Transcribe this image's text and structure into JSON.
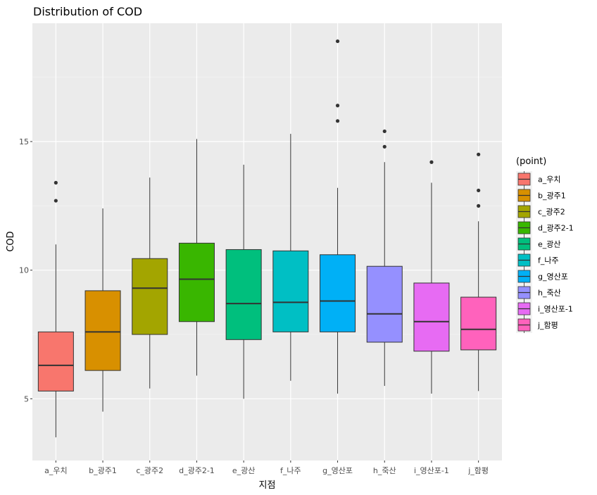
{
  "chart_data": {
    "type": "box",
    "title": "Distribution of COD",
    "xlabel": "지점",
    "ylabel": "COD",
    "ylim": [
      2.6,
      19.6
    ],
    "yticks": [
      5,
      10,
      15
    ],
    "grid": true,
    "legend_position": "right",
    "legend_title": "(point)",
    "categories": [
      "a_우치",
      "b_광주1",
      "c_광주2",
      "d_광주2-1",
      "e_광산",
      "f_나주",
      "g_영산포",
      "h_죽산",
      "i_영산포-1",
      "j_함평"
    ],
    "colors": [
      "#F8766D",
      "#D89000",
      "#A3A500",
      "#39B600",
      "#00BF7D",
      "#00BFC4",
      "#00B0F6",
      "#9590FF",
      "#E76BF3",
      "#FF62BC"
    ],
    "boxes": [
      {
        "min": 3.5,
        "q1": 5.3,
        "median": 6.3,
        "q3": 7.6,
        "max": 11.0,
        "outliers": [
          12.7,
          13.4
        ]
      },
      {
        "min": 4.5,
        "q1": 6.1,
        "median": 7.6,
        "q3": 9.2,
        "max": 12.4,
        "outliers": []
      },
      {
        "min": 5.4,
        "q1": 7.5,
        "median": 9.3,
        "q3": 10.45,
        "max": 13.6,
        "outliers": []
      },
      {
        "min": 5.9,
        "q1": 8.0,
        "median": 9.65,
        "q3": 11.05,
        "max": 15.1,
        "outliers": []
      },
      {
        "min": 5.0,
        "q1": 7.3,
        "median": 8.7,
        "q3": 10.8,
        "max": 14.1,
        "outliers": []
      },
      {
        "min": 5.7,
        "q1": 7.6,
        "median": 8.75,
        "q3": 10.75,
        "max": 15.3,
        "outliers": []
      },
      {
        "min": 5.2,
        "q1": 7.6,
        "median": 8.8,
        "q3": 10.6,
        "max": 13.2,
        "outliers": [
          15.8,
          16.4,
          18.9
        ]
      },
      {
        "min": 5.5,
        "q1": 7.2,
        "median": 8.3,
        "q3": 10.15,
        "max": 14.2,
        "outliers": [
          14.8,
          15.4
        ]
      },
      {
        "min": 5.2,
        "q1": 6.85,
        "median": 8.0,
        "q3": 9.5,
        "max": 13.4,
        "outliers": [
          14.2
        ]
      },
      {
        "min": 5.3,
        "q1": 6.9,
        "median": 7.7,
        "q3": 8.95,
        "max": 11.9,
        "outliers": [
          12.5,
          13.1,
          14.5
        ]
      }
    ]
  }
}
